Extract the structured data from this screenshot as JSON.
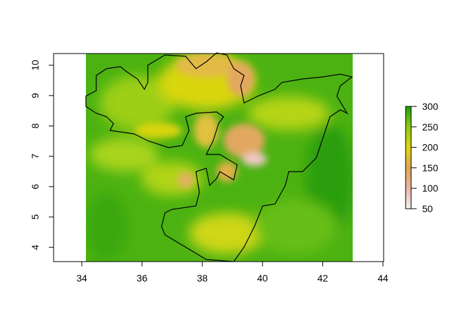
{
  "chart_data": {
    "type": "heatmap",
    "title": "",
    "xlabel": "",
    "ylabel": "",
    "xlim": [
      33,
      44
    ],
    "ylim": [
      3.5,
      10.4
    ],
    "raster_extent": {
      "x": [
        34.15,
        43.0
      ],
      "y": [
        3.5,
        10.4
      ]
    },
    "x_ticks": [
      34,
      36,
      38,
      40,
      42,
      44
    ],
    "y_ticks": [
      4,
      5,
      6,
      7,
      8,
      9,
      10
    ],
    "colorbar": {
      "zlim": [
        50,
        300
      ],
      "ticks": [
        50,
        100,
        150,
        200,
        250,
        300
      ],
      "colors": [
        "#f2f2f2",
        "#e9b5a8",
        "#e2a550",
        "#ddd80a",
        "#8ccc14",
        "#1e9e0a"
      ],
      "placement": "right"
    },
    "overlay": "country boundary outline (black line)",
    "grid": false
  }
}
